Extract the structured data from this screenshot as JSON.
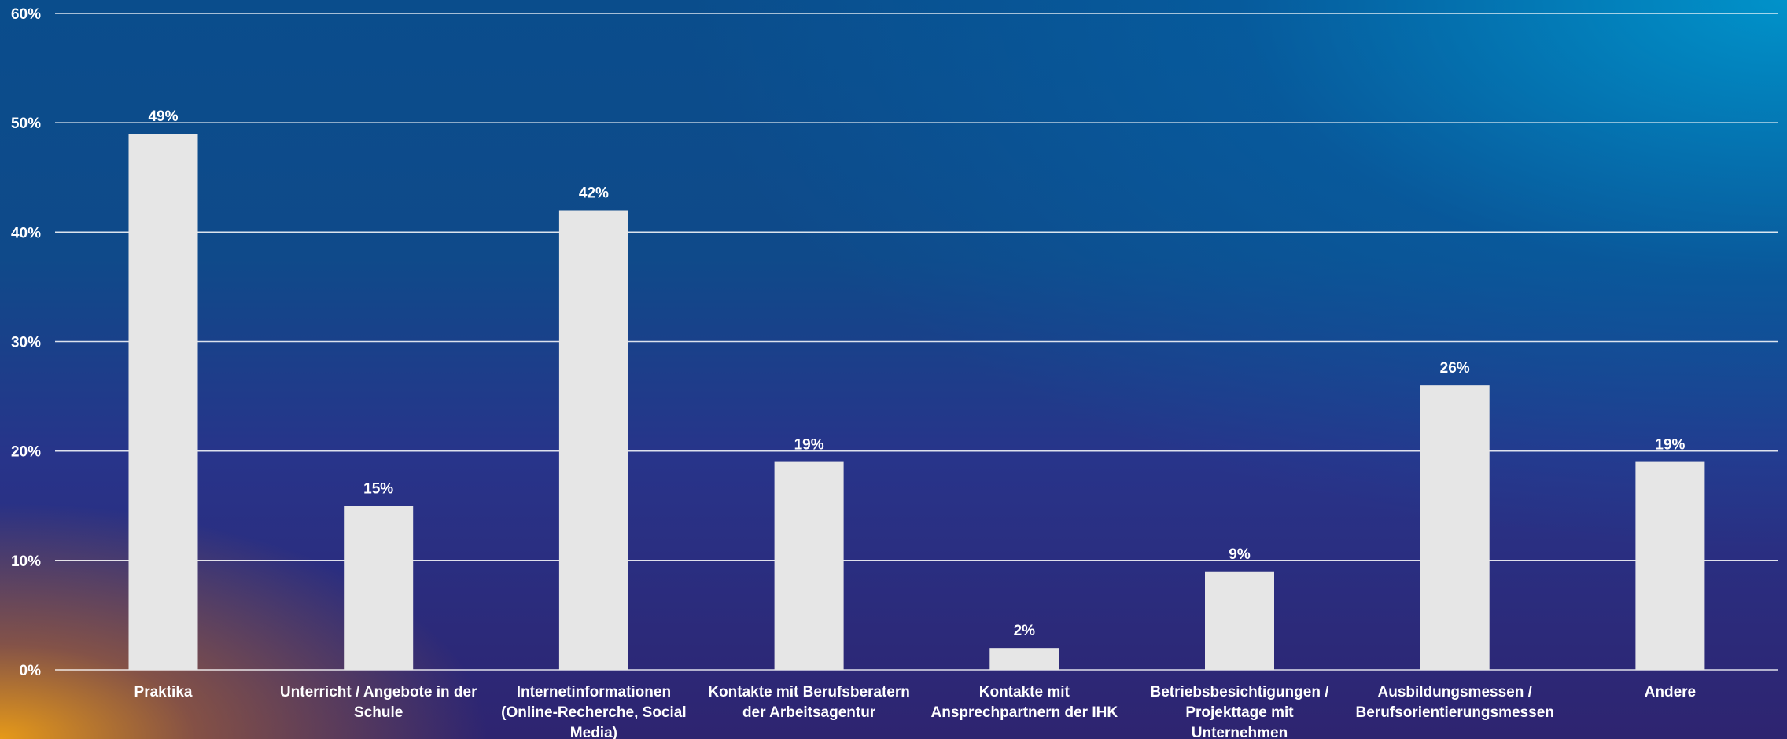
{
  "chart_data": {
    "type": "bar",
    "title": "",
    "xlabel": "",
    "ylabel": "",
    "ylim": [
      0,
      60
    ],
    "yticks": [
      0,
      10,
      20,
      30,
      40,
      50,
      60
    ],
    "ytick_labels": [
      "0%",
      "10%",
      "20%",
      "30%",
      "40%",
      "50%",
      "60%"
    ],
    "grid": true,
    "categories": [
      "Praktika",
      "Unterricht / Angebote in der Schule",
      "Internetinformationen (Online-Recherche, Social Media)",
      "Kontakte mit Berufsberatern der Arbeitsagentur",
      "Kontakte mit Ansprechpartnern der IHK",
      "Betriebsbesichtigungen / Projekttage mit Unternehmen",
      "Ausbildungsmessen / Berufsorientierungsmessen",
      "Andere"
    ],
    "category_lines": [
      [
        "Praktika"
      ],
      [
        "Unterricht / Angebote in der",
        "Schule"
      ],
      [
        "Internetinformationen",
        "(Online-Recherche, Social",
        "Media)"
      ],
      [
        "Kontakte mit Berufsberatern",
        "der Arbeitsagentur"
      ],
      [
        "Kontakte mit",
        "Ansprechpartnern der IHK"
      ],
      [
        "Betriebsbesichtigungen /",
        "Projekttage mit",
        "Unternehmen"
      ],
      [
        "Ausbildungsmessen /",
        "Berufsorientierungsmessen"
      ],
      [
        "Andere"
      ]
    ],
    "values": [
      49,
      15,
      42,
      19,
      2,
      9,
      26,
      19
    ],
    "value_labels": [
      "49%",
      "15%",
      "42%",
      "19%",
      "2%",
      "9%",
      "26%",
      "19%"
    ],
    "colors": {
      "bar": "#e6e6e6",
      "grid": "#ffffff",
      "text": "#ffffff"
    }
  }
}
